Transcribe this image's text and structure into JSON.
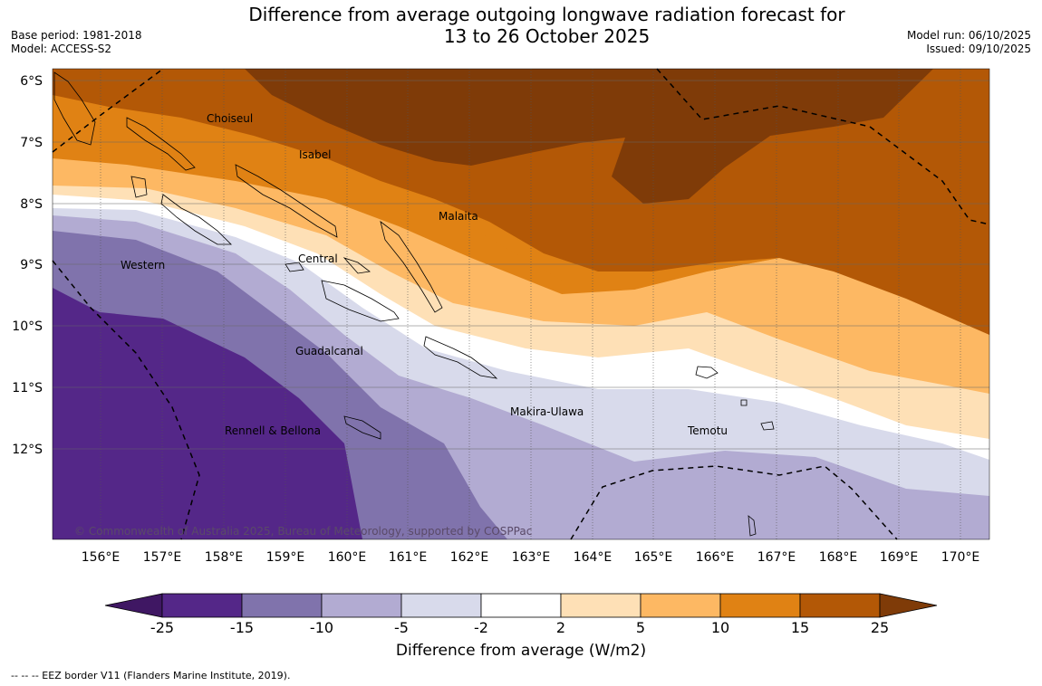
{
  "header": {
    "title_line1": "Difference from average outgoing longwave radiation forecast for",
    "title_line2": "13 to 26 October 2025",
    "base_period": "Base period: 1981-2018",
    "model": "Model: ACCESS-S2",
    "model_run": "Model run: 06/10/2025",
    "issued": "Issued: 09/10/2025"
  },
  "map": {
    "lat_labels": [
      "6°S",
      "7°S",
      "8°S",
      "9°S",
      "10°S",
      "11°S",
      "12°S"
    ],
    "lon_labels": [
      "156°E",
      "157°E",
      "158°E",
      "159°E",
      "160°E",
      "161°E",
      "162°E",
      "163°E",
      "164°E",
      "165°E",
      "166°E",
      "167°E",
      "168°E",
      "169°E",
      "170°E"
    ],
    "provinces": [
      "Choiseul",
      "Isabel",
      "Malaita",
      "Central",
      "Western",
      "Guadalcanal",
      "Makira-Ulawa",
      "Temotu",
      "Rennell & Bellona"
    ],
    "copyright": "© Commonwealth of Australia 2025, Bureau of Meteorology, supported by COSPPac"
  },
  "colorbar": {
    "tick_labels": [
      "-25",
      "-15",
      "-10",
      "-5",
      "-2",
      "2",
      "5",
      "10",
      "15",
      "25"
    ],
    "colors": [
      "#3f1763",
      "#542788",
      "#8073ac",
      "#b2abd2",
      "#d8daeb",
      "#ffffff",
      "#fee0b6",
      "#fdb863",
      "#e08214",
      "#b35806",
      "#7f3b08"
    ],
    "title": "Difference from average (W/m2)"
  },
  "footnote": "--  --  -- EEZ border V11 (Flanders Marine Institute, 2019)."
}
